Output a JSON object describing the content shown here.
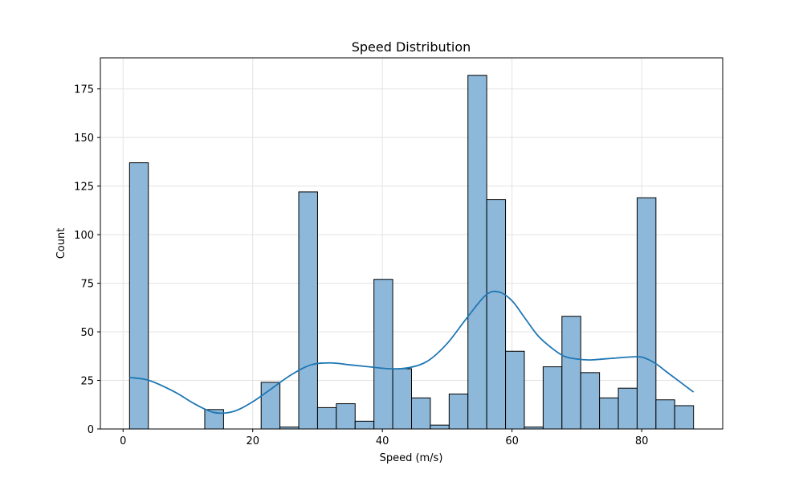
{
  "chart_data": {
    "type": "bar",
    "subtype": "histogram",
    "title": "Speed Distribution",
    "xlabel": "Speed (m/s)",
    "ylabel": "Count",
    "xlim": [
      -3.5,
      92.5
    ],
    "ylim": [
      0,
      191
    ],
    "x_ticks": [
      0,
      20,
      40,
      60,
      80
    ],
    "y_ticks": [
      0,
      25,
      50,
      75,
      100,
      125,
      150,
      175
    ],
    "grid": true,
    "bar_color": "#8db8da",
    "bar_edge_color": "#000000",
    "kde_color": "#1f77b4",
    "bins": [
      {
        "x0": 1.0,
        "x1": 3.9,
        "count": 137
      },
      {
        "x0": 3.9,
        "x1": 6.8,
        "count": 0
      },
      {
        "x0": 6.8,
        "x1": 9.7,
        "count": 0
      },
      {
        "x0": 9.7,
        "x1": 12.6,
        "count": 0
      },
      {
        "x0": 12.6,
        "x1": 15.5,
        "count": 10
      },
      {
        "x0": 15.5,
        "x1": 18.4,
        "count": 0
      },
      {
        "x0": 18.4,
        "x1": 21.3,
        "count": 0
      },
      {
        "x0": 21.3,
        "x1": 24.2,
        "count": 24
      },
      {
        "x0": 24.2,
        "x1": 27.1,
        "count": 1
      },
      {
        "x0": 27.1,
        "x1": 30.0,
        "count": 122
      },
      {
        "x0": 30.0,
        "x1": 32.9,
        "count": 11
      },
      {
        "x0": 32.9,
        "x1": 35.8,
        "count": 13
      },
      {
        "x0": 35.8,
        "x1": 38.7,
        "count": 4
      },
      {
        "x0": 38.7,
        "x1": 41.6,
        "count": 77
      },
      {
        "x0": 41.6,
        "x1": 44.5,
        "count": 31
      },
      {
        "x0": 44.5,
        "x1": 47.4,
        "count": 16
      },
      {
        "x0": 47.4,
        "x1": 50.3,
        "count": 2
      },
      {
        "x0": 50.3,
        "x1": 53.2,
        "count": 18
      },
      {
        "x0": 53.2,
        "x1": 56.1,
        "count": 182
      },
      {
        "x0": 56.1,
        "x1": 59.0,
        "count": 118
      },
      {
        "x0": 59.0,
        "x1": 61.9,
        "count": 40
      },
      {
        "x0": 61.9,
        "x1": 64.8,
        "count": 1
      },
      {
        "x0": 64.8,
        "x1": 67.7,
        "count": 32
      },
      {
        "x0": 67.7,
        "x1": 70.6,
        "count": 58
      },
      {
        "x0": 70.6,
        "x1": 73.5,
        "count": 29
      },
      {
        "x0": 73.5,
        "x1": 76.4,
        "count": 16
      },
      {
        "x0": 76.4,
        "x1": 79.3,
        "count": 21
      },
      {
        "x0": 79.3,
        "x1": 82.2,
        "count": 119
      },
      {
        "x0": 82.2,
        "x1": 85.1,
        "count": 15
      },
      {
        "x0": 85.1,
        "x1": 88.0,
        "count": 12
      }
    ],
    "kde": {
      "x": [
        1,
        4,
        8,
        11,
        14,
        17,
        20,
        23,
        26,
        29,
        32,
        35,
        38,
        41,
        44,
        47,
        50,
        53,
        56,
        58,
        60,
        62,
        64,
        66,
        68,
        70,
        72,
        74,
        76,
        78,
        80,
        82,
        84,
        86,
        88
      ],
      "y": [
        26.5,
        25,
        19,
        13,
        8.5,
        9,
        14,
        21,
        28,
        33,
        34,
        33,
        32,
        31,
        31.5,
        35,
        44,
        57,
        69,
        70.5,
        66,
        57,
        48,
        42,
        37.5,
        36,
        35.5,
        36,
        36.5,
        37,
        37,
        34,
        29,
        24,
        19
      ]
    }
  }
}
